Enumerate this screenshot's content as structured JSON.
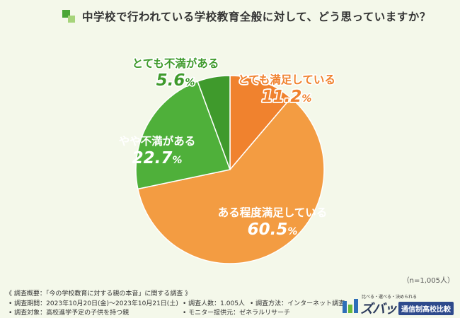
{
  "title": "中学校で行われている学校教育全般に対して、どう思っていますか？",
  "sample_note": "（n=1,005人）",
  "chart_data": {
    "type": "pie",
    "title": "中学校で行われている学校教育全般に対して、どう思っていますか？",
    "slices": [
      {
        "label": "とても満足している",
        "value": 11.2,
        "color": "#f0822e",
        "label_color": "#f0822e"
      },
      {
        "label": "ある程度満足している",
        "value": 60.5,
        "color": "#f39c42",
        "label_color": "#ffffff"
      },
      {
        "label": "やや不満がある",
        "value": 22.7,
        "color": "#4fb03a",
        "label_color": "#ffffff"
      },
      {
        "label": "とても不満がある",
        "value": 5.6,
        "color": "#3f9a2c",
        "label_color": "#3f9a2c"
      }
    ],
    "start": "12 o'clock, clockwise",
    "unit": "%"
  },
  "footer": {
    "heading": "《 調査概要：「今の学校教育に対する親の本音」に関する調査 》",
    "items": [
      "• 調査期間：2023年10月20日(金)～2023年10月21日(土)",
      "• 調査人数：1.005人",
      "• 調査方法：インターネット調査",
      "• 調査対象：高校進学予定の子供を持つ親",
      "• モニター提供元：ゼネラルリサーチ"
    ]
  },
  "logo": {
    "tagline": "比べる・選べる・決められる",
    "name": "ズバット",
    "badge": "通信制高校比較",
    "colors": {
      "name": "#2b3a5c",
      "badge_bg": "#2e4a8c",
      "mark_blue": "#2e6fb8",
      "mark_green": "#6bbb3a"
    }
  }
}
